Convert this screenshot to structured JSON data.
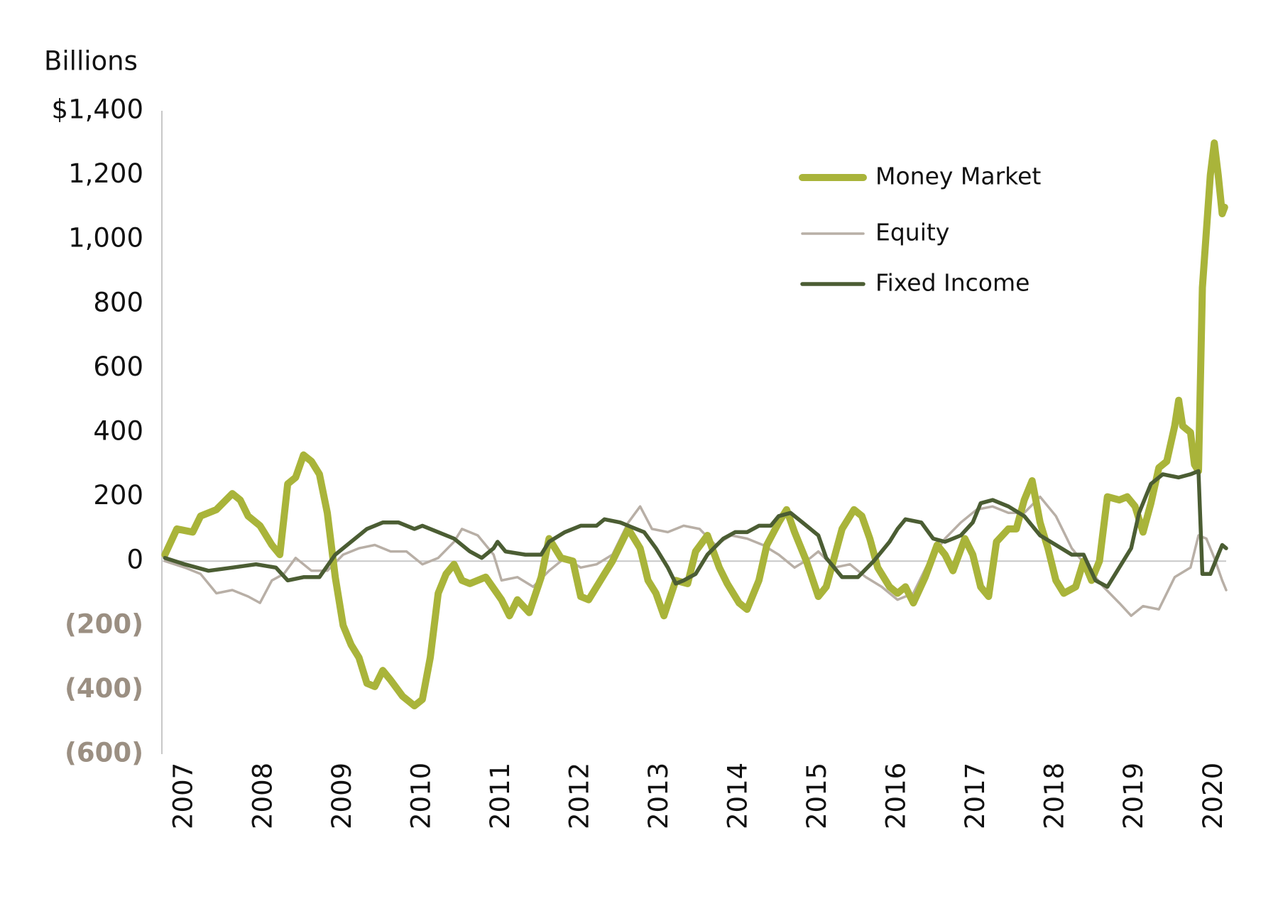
{
  "chart_data": {
    "type": "line",
    "y_axis_label": "Billions",
    "xlim": [
      2006.72,
      2020.15
    ],
    "xticks": [
      2007,
      2008,
      2009,
      2010,
      2011,
      2012,
      2013,
      2014,
      2015,
      2016,
      2017,
      2018,
      2019,
      2020
    ],
    "ylim": [
      -600,
      1400
    ],
    "yticks": [
      {
        "value": -600,
        "label": "(600)"
      },
      {
        "value": -400,
        "label": "(400)"
      },
      {
        "value": -200,
        "label": "(200)"
      },
      0,
      200,
      400,
      600,
      800,
      {
        "value": 1000,
        "label": "1,000"
      },
      {
        "value": 1200,
        "label": "1,200"
      },
      {
        "value": 1400,
        "label": "$1,400"
      }
    ],
    "legend": "upper right",
    "series": [
      {
        "name": "Money Market",
        "color": "#a9b43a",
        "x": [
          2006.75,
          2006.9,
          2007.1,
          2007.2,
          2007.4,
          2007.6,
          2007.7,
          2007.8,
          2007.95,
          2008.0,
          2008.1,
          2008.2,
          2008.25,
          2008.3,
          2008.4,
          2008.5,
          2008.6,
          2008.7,
          2008.8,
          2008.9,
          2009.0,
          2009.1,
          2009.2,
          2009.3,
          2009.4,
          2009.5,
          2009.6,
          2009.75,
          2009.9,
          2010.0,
          2010.1,
          2010.2,
          2010.3,
          2010.4,
          2010.5,
          2010.6,
          2010.8,
          2011.0,
          2011.1,
          2011.2,
          2011.35,
          2011.5,
          2011.6,
          2011.75,
          2011.9,
          2012.0,
          2012.1,
          2012.3,
          2012.4,
          2012.6,
          2012.75,
          2012.85,
          2012.95,
          2013.05,
          2013.2,
          2013.35,
          2013.45,
          2013.6,
          2013.75,
          2013.85,
          2014.0,
          2014.1,
          2014.25,
          2014.35,
          2014.5,
          2014.6,
          2014.7,
          2014.85,
          2015.0,
          2015.1,
          2015.2,
          2015.3,
          2015.45,
          2015.55,
          2015.65,
          2015.75,
          2015.9,
          2016.0,
          2016.1,
          2016.2,
          2016.35,
          2016.5,
          2016.6,
          2016.7,
          2016.85,
          2016.95,
          2017.05,
          2017.15,
          2017.25,
          2017.4,
          2017.5,
          2017.6,
          2017.7,
          2017.8,
          2017.9,
          2018.0,
          2018.1,
          2018.25,
          2018.35,
          2018.45,
          2018.55,
          2018.65,
          2018.8,
          2018.9,
          2019.0,
          2019.1,
          2019.2,
          2019.3,
          2019.4,
          2019.5,
          2019.55,
          2019.6,
          2019.7,
          2019.75,
          2019.8,
          2019.85,
          2019.95,
          2020.0,
          2020.05,
          2020.1,
          2020.13
        ],
        "values": [
          20,
          100,
          90,
          140,
          160,
          210,
          190,
          140,
          110,
          90,
          50,
          20,
          130,
          240,
          260,
          330,
          310,
          270,
          150,
          -50,
          -200,
          -260,
          -300,
          -380,
          -390,
          -340,
          -370,
          -420,
          -450,
          -430,
          -300,
          -100,
          -40,
          -10,
          -60,
          -70,
          -50,
          -120,
          -170,
          -120,
          -160,
          -50,
          70,
          10,
          0,
          -110,
          -120,
          -40,
          0,
          100,
          40,
          -60,
          -100,
          -170,
          -60,
          -70,
          30,
          80,
          -20,
          -70,
          -130,
          -150,
          -60,
          50,
          120,
          160,
          90,
          0,
          -110,
          -80,
          10,
          100,
          160,
          140,
          70,
          -20,
          -80,
          -100,
          -80,
          -130,
          -50,
          50,
          20,
          -30,
          70,
          20,
          -80,
          -110,
          60,
          100,
          100,
          190,
          250,
          120,
          40,
          -60,
          -100,
          -80,
          0,
          -60,
          0,
          200,
          190,
          200,
          170,
          90,
          180,
          290,
          310,
          420,
          500,
          420,
          400,
          300,
          280,
          850,
          1200,
          1300,
          1200,
          1080,
          1100
        ]
      },
      {
        "name": "Equity",
        "color": "#b8afa6",
        "x": [
          2006.75,
          2007.0,
          2007.2,
          2007.4,
          2007.6,
          2007.8,
          2007.95,
          2008.1,
          2008.25,
          2008.4,
          2008.6,
          2008.8,
          2009.0,
          2009.2,
          2009.4,
          2009.6,
          2009.8,
          2010.0,
          2010.2,
          2010.4,
          2010.5,
          2010.7,
          2010.9,
          2011.0,
          2011.2,
          2011.4,
          2011.6,
          2011.8,
          2012.0,
          2012.2,
          2012.4,
          2012.6,
          2012.75,
          2012.9,
          2013.1,
          2013.3,
          2013.5,
          2013.7,
          2013.9,
          2014.1,
          2014.3,
          2014.5,
          2014.7,
          2014.9,
          2015.0,
          2015.2,
          2015.4,
          2015.6,
          2015.8,
          2016.0,
          2016.2,
          2016.4,
          2016.6,
          2016.8,
          2017.0,
          2017.2,
          2017.4,
          2017.6,
          2017.8,
          2018.0,
          2018.2,
          2018.4,
          2018.6,
          2018.8,
          2018.95,
          2019.1,
          2019.3,
          2019.5,
          2019.7,
          2019.8,
          2019.9,
          2020.0,
          2020.1,
          2020.15
        ],
        "values": [
          0,
          -20,
          -40,
          -100,
          -90,
          -110,
          -130,
          -60,
          -40,
          10,
          -30,
          -30,
          20,
          40,
          50,
          30,
          30,
          -10,
          10,
          60,
          100,
          80,
          20,
          -60,
          -50,
          -80,
          -30,
          10,
          -20,
          -10,
          20,
          120,
          170,
          100,
          90,
          110,
          100,
          50,
          80,
          70,
          50,
          20,
          -20,
          10,
          30,
          -20,
          -10,
          -50,
          -80,
          -120,
          -100,
          0,
          70,
          120,
          160,
          170,
          150,
          150,
          200,
          140,
          40,
          -20,
          -80,
          -130,
          -170,
          -140,
          -150,
          -50,
          -20,
          80,
          70,
          10,
          -60,
          -90
        ]
      },
      {
        "name": "Fixed Income",
        "color": "#4b5d33",
        "x": [
          2006.75,
          2007.0,
          2007.3,
          2007.6,
          2007.9,
          2008.15,
          2008.3,
          2008.5,
          2008.7,
          2008.9,
          2009.1,
          2009.3,
          2009.5,
          2009.7,
          2009.9,
          2010.0,
          2010.2,
          2010.4,
          2010.6,
          2010.75,
          2010.9,
          2010.95,
          2011.05,
          2011.3,
          2011.5,
          2011.6,
          2011.8,
          2012.0,
          2012.2,
          2012.3,
          2012.5,
          2012.7,
          2012.8,
          2012.95,
          2013.1,
          2013.2,
          2013.3,
          2013.45,
          2013.6,
          2013.8,
          2013.95,
          2014.1,
          2014.25,
          2014.4,
          2014.5,
          2014.65,
          2014.8,
          2015.0,
          2015.1,
          2015.3,
          2015.5,
          2015.7,
          2015.9,
          2016.0,
          2016.1,
          2016.3,
          2016.45,
          2016.6,
          2016.8,
          2016.95,
          2017.05,
          2017.2,
          2017.4,
          2017.6,
          2017.8,
          2018.0,
          2018.2,
          2018.35,
          2018.5,
          2018.65,
          2018.8,
          2018.95,
          2019.05,
          2019.2,
          2019.35,
          2019.55,
          2019.7,
          2019.8,
          2019.85,
          2019.95,
          2020.05,
          2020.1,
          2020.15
        ],
        "values": [
          10,
          -10,
          -30,
          -20,
          -10,
          -20,
          -60,
          -50,
          -50,
          20,
          60,
          100,
          120,
          120,
          100,
          110,
          90,
          70,
          30,
          10,
          40,
          60,
          30,
          20,
          20,
          60,
          90,
          110,
          110,
          130,
          120,
          100,
          90,
          40,
          -20,
          -70,
          -60,
          -40,
          20,
          70,
          90,
          90,
          110,
          110,
          140,
          150,
          120,
          80,
          10,
          -50,
          -50,
          0,
          60,
          100,
          130,
          120,
          70,
          60,
          80,
          120,
          180,
          190,
          170,
          140,
          80,
          50,
          20,
          20,
          -60,
          -80,
          -20,
          40,
          150,
          240,
          270,
          260,
          270,
          280,
          -40,
          -40,
          20,
          50,
          40
        ]
      }
    ]
  }
}
